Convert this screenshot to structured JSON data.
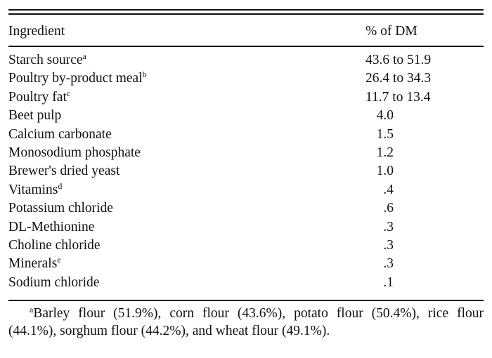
{
  "table": {
    "columns": [
      "Ingredient",
      "% of DM"
    ],
    "rows": [
      {
        "ingredient": "Starch source",
        "note": "a",
        "value": "43.6 to 51.9",
        "range": true
      },
      {
        "ingredient": "Poultry by-product meal",
        "note": "b",
        "value": "26.4 to 34.3",
        "range": true
      },
      {
        "ingredient": "Poultry fat",
        "note": "c",
        "value": "11.7 to 13.4",
        "range": true
      },
      {
        "ingredient": "Beet pulp",
        "note": "",
        "value": "4.0"
      },
      {
        "ingredient": "Calcium carbonate",
        "note": "",
        "value": "1.5"
      },
      {
        "ingredient": "Monosodium phosphate",
        "note": "",
        "value": "1.2"
      },
      {
        "ingredient": "Brewer's dried yeast",
        "note": "",
        "value": "1.0"
      },
      {
        "ingredient": "Vitamins",
        "note": "d",
        "value": ".4"
      },
      {
        "ingredient": "Potassium chloride",
        "note": "",
        "value": ".6"
      },
      {
        "ingredient": "DL-Methionine",
        "note": "",
        "value": ".3"
      },
      {
        "ingredient": "Choline chloride",
        "note": "",
        "value": ".3"
      },
      {
        "ingredient": "Minerals",
        "note": "e",
        "value": ".3"
      },
      {
        "ingredient": "Sodium chloride",
        "note": "",
        "value": ".1"
      }
    ]
  },
  "footnote": {
    "mark": "a",
    "text": "Barley flour (51.9%), corn flour (43.6%), potato flour (50.4%), rice flour (44.1%), sorghum flour (44.2%), and wheat flour (49.1%)."
  }
}
